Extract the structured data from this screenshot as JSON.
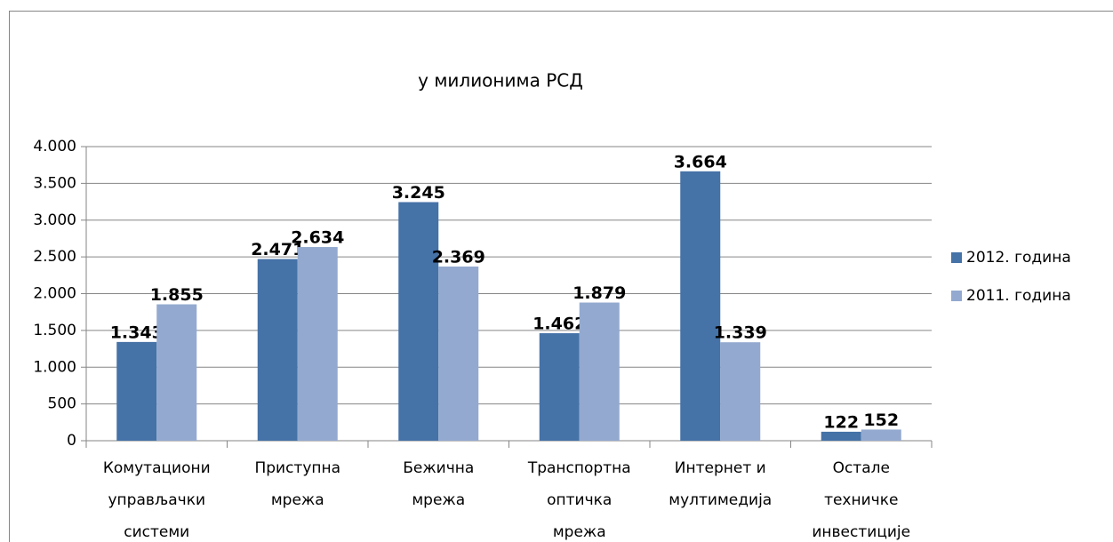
{
  "chart_data": {
    "type": "bar",
    "title": "у милионима РСД",
    "categories": [
      [
        "Комутациони",
        "управљачки",
        "системи"
      ],
      [
        "Приступна",
        "мрежа"
      ],
      [
        "Бежична",
        "мрежа"
      ],
      [
        "Транспортна",
        "оптичка",
        "мрежа"
      ],
      [
        "Интернет и",
        "мултимедија"
      ],
      [
        "Остале",
        "техничке",
        "инвестиције"
      ]
    ],
    "series": [
      {
        "name": "2012. година",
        "color": "#4572a7",
        "values": [
          1343,
          2471,
          3245,
          1462,
          3664,
          122
        ],
        "value_labels": [
          "1.343",
          "2.471",
          "3.245",
          "1.462",
          "3.664",
          "122"
        ]
      },
      {
        "name": "2011. година",
        "color": "#93a9cf",
        "values": [
          1855,
          2634,
          2369,
          1879,
          1339,
          152
        ],
        "value_labels": [
          "1.855",
          "2.634",
          "2.369",
          "1.879",
          "1.339",
          "152"
        ]
      }
    ],
    "ylim": [
      0,
      4000
    ],
    "yticks": [
      0,
      500,
      {
        "value": 1000,
        "label": "1.000"
      },
      {
        "value": 1500,
        "label": "1.500"
      },
      {
        "value": 2000,
        "label": "2.000"
      },
      {
        "value": 2500,
        "label": "2.500"
      },
      {
        "value": 3000,
        "label": "3.000"
      },
      {
        "value": 3500,
        "label": "3.500"
      },
      {
        "value": 4000,
        "label": "4.000"
      }
    ],
    "grid": true,
    "legend": "right"
  }
}
